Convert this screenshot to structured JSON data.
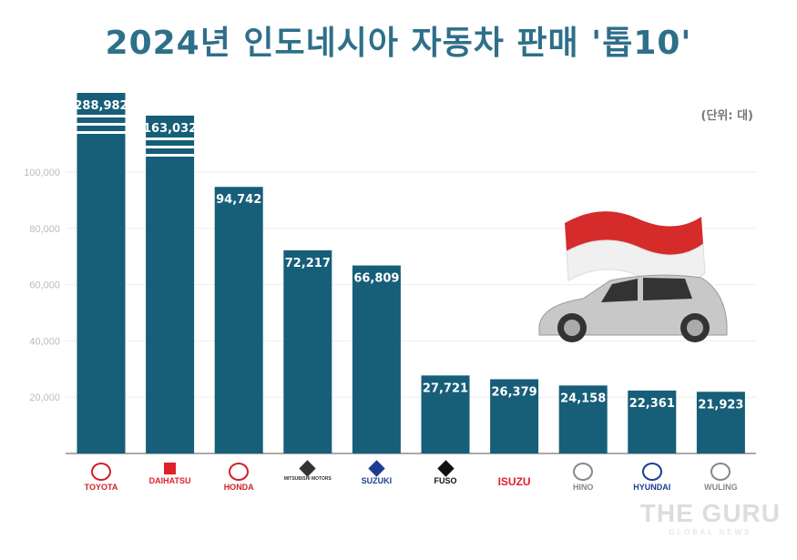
{
  "chart_data": {
    "type": "bar",
    "title": "2024년 인도네시아 자동차 판매 '톱10'",
    "unit": "(단위: 대)",
    "categories": [
      "TOYOTA",
      "DAIHATSU",
      "HONDA",
      "MITSUBISHI MOTORS",
      "SUZUKI",
      "FUSO",
      "ISUZU",
      "HINO",
      "HYUNDAI",
      "WULING"
    ],
    "values": [
      288982,
      163032,
      94742,
      72217,
      66809,
      27721,
      26379,
      24158,
      22361,
      21923
    ],
    "value_labels": [
      "288,982",
      "163,032",
      "94,742",
      "72,217",
      "66,809",
      "27,721",
      "26,379",
      "24,158",
      "22,361",
      "21,923"
    ],
    "ylim": [
      0,
      100000
    ],
    "yticks": [
      20000,
      40000,
      60000,
      80000,
      100000
    ],
    "ytick_labels": [
      "20,000",
      "40,000",
      "60,000",
      "80,000",
      "100,000"
    ],
    "broken_bars": [
      "TOYOTA",
      "DAIHATSU"
    ],
    "grid": true,
    "bar_color": "#175e78"
  },
  "logos": [
    {
      "text": "TOYOTA",
      "color": "#d0202a"
    },
    {
      "text": "DAIHATSU",
      "color": "#e0202a"
    },
    {
      "text": "HONDA",
      "color": "#d0202a"
    },
    {
      "text": "MITSUBISHI MOTORS",
      "color": "#333333"
    },
    {
      "text": "SUZUKI",
      "color": "#1c3d8f"
    },
    {
      "text": "FUSO",
      "color": "#111111"
    },
    {
      "text": "ISUZU",
      "color": "#e0202a"
    },
    {
      "text": "HINO",
      "color": "#888888"
    },
    {
      "text": "HYUNDAI",
      "color": "#1c3d8f"
    },
    {
      "text": "WULING",
      "color": "#888888"
    }
  ],
  "watermark": {
    "title": "THE GURU",
    "subtitle": "GLOBAL NEWS"
  }
}
